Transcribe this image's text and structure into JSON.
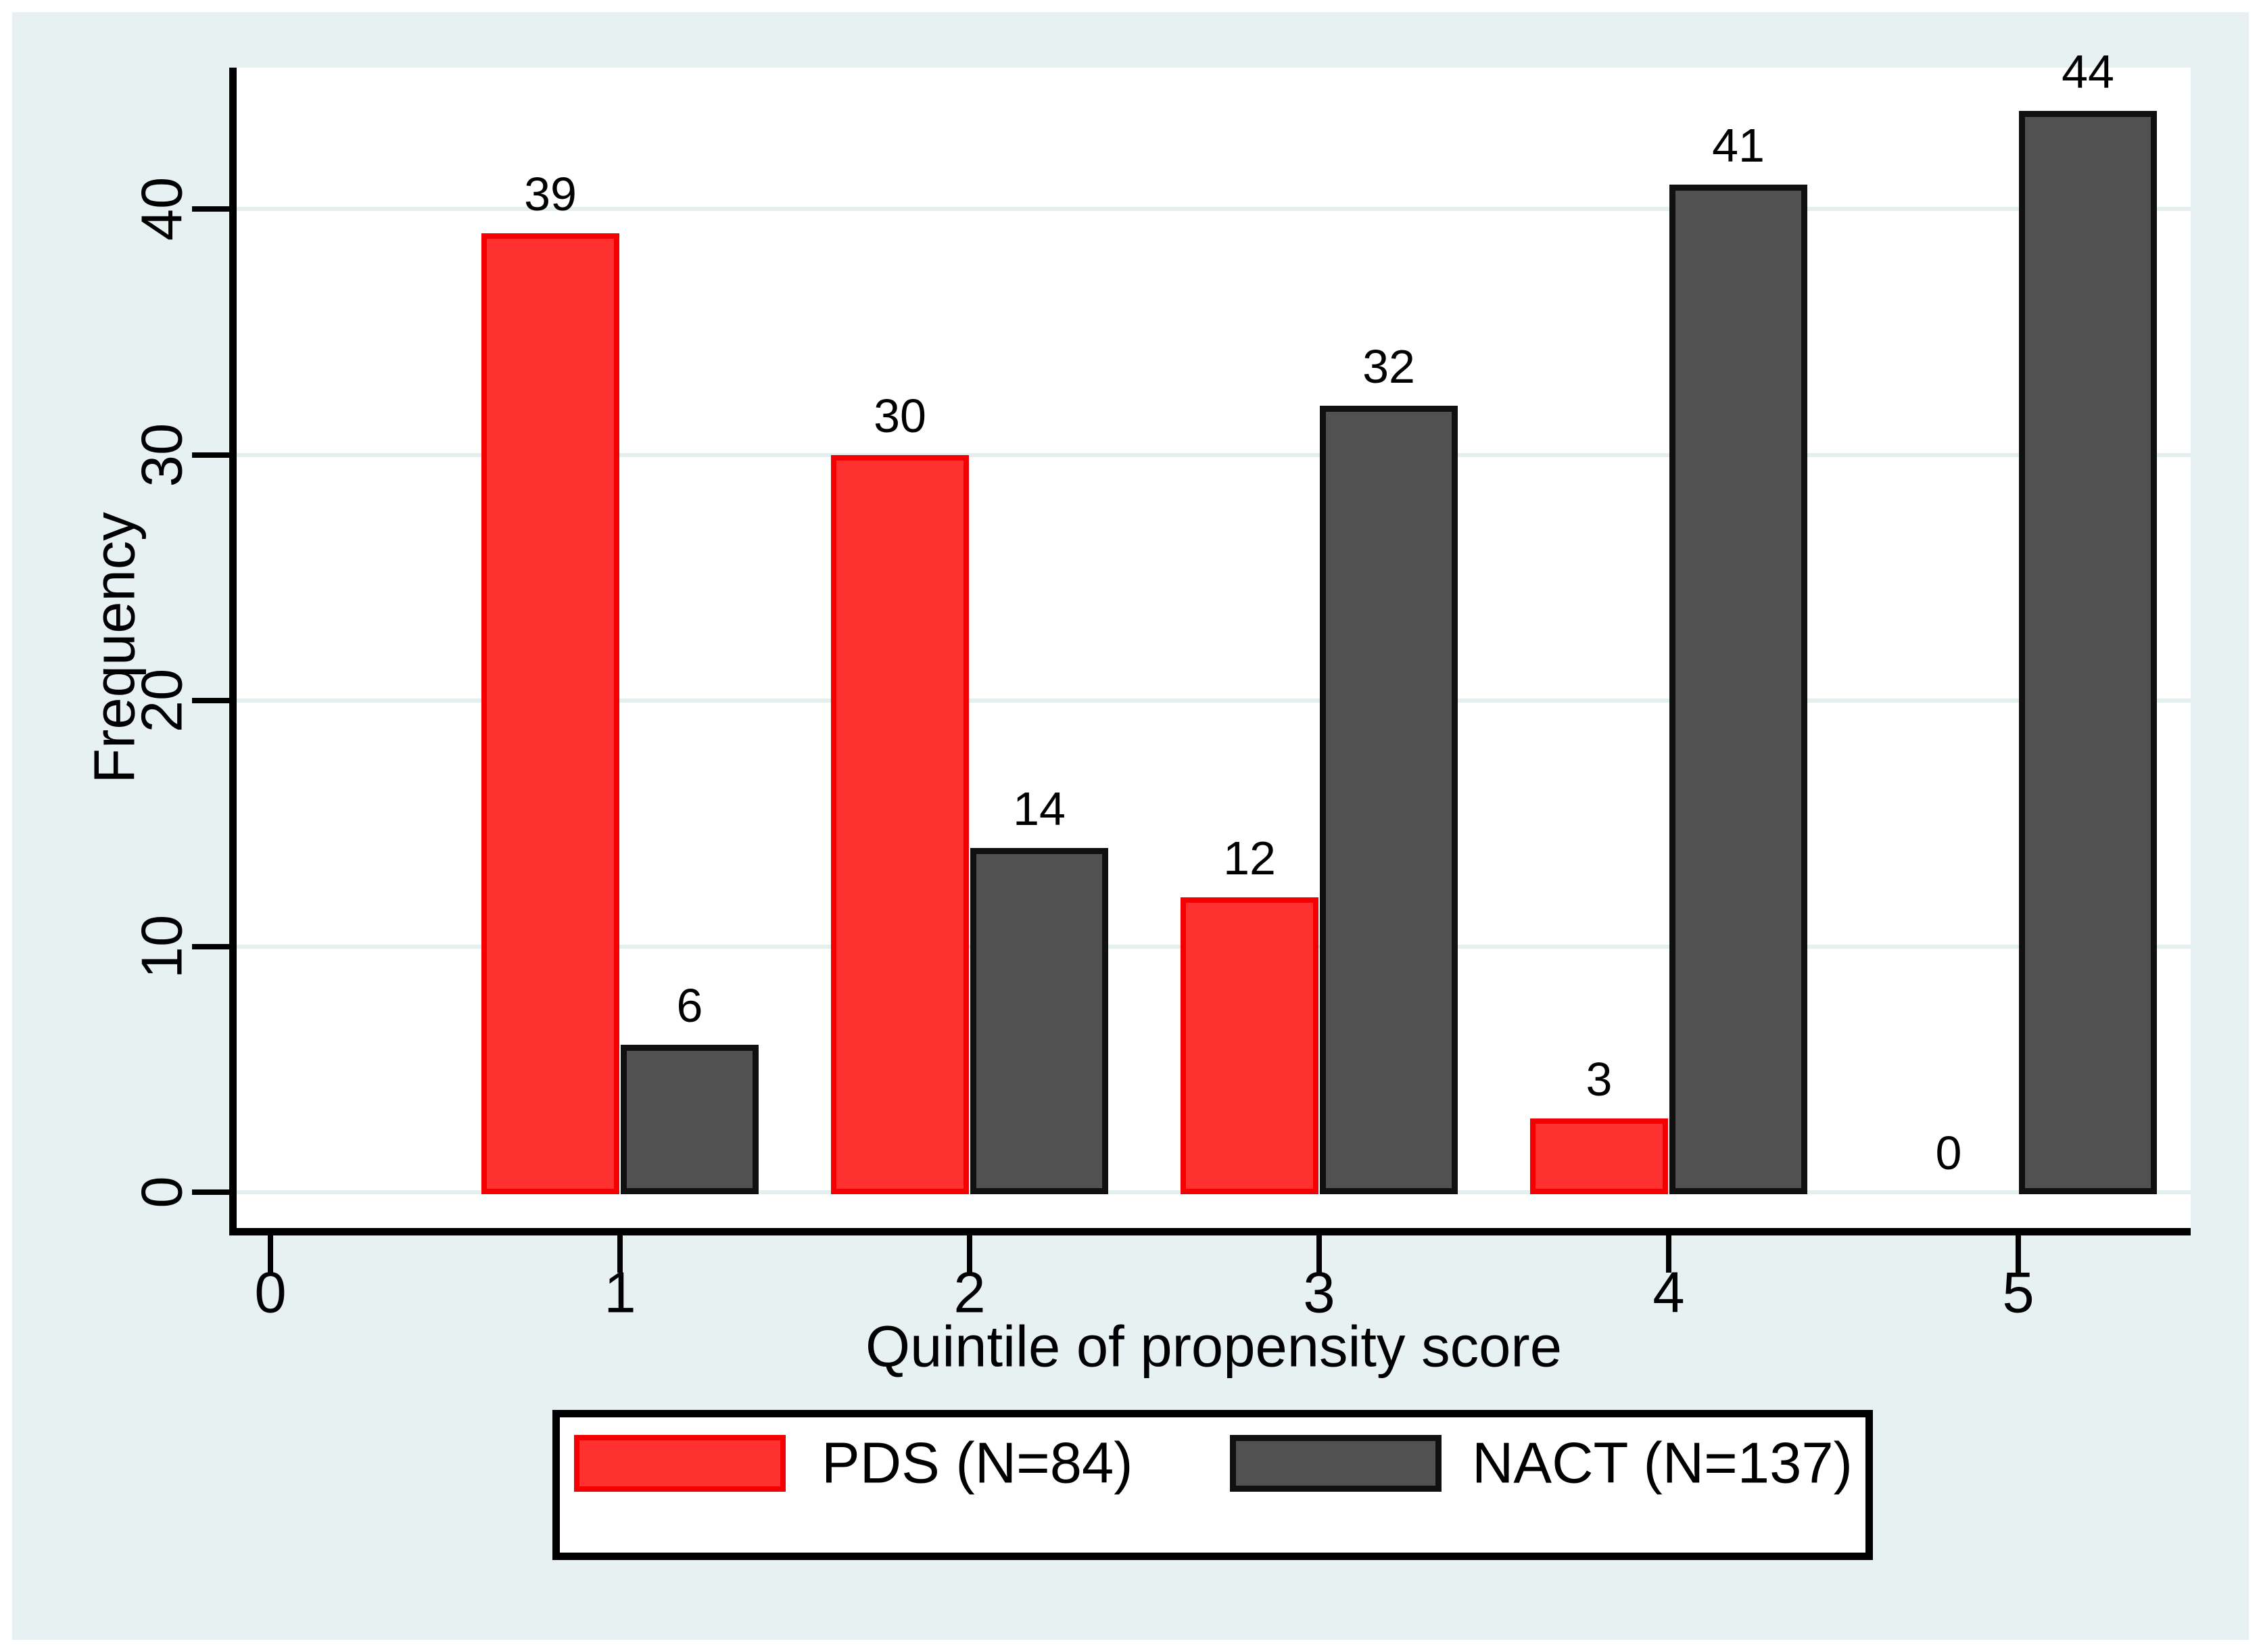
{
  "chart_data": {
    "type": "bar",
    "xlabel": "Quintile of propensity score",
    "ylabel": "Frequency",
    "categories": [
      1,
      2,
      3,
      4,
      5
    ],
    "series": [
      {
        "name": "PDS (N=84)",
        "color": "#ff3030",
        "border_color": "#f40000",
        "values": [
          39,
          30,
          12,
          3,
          0
        ]
      },
      {
        "name": "NACT (N=137)",
        "color": "#515151",
        "border_color": "#101010",
        "values": [
          6,
          14,
          32,
          41,
          44
        ]
      }
    ],
    "x_axis_ticks": [
      "0",
      "1",
      "2",
      "3",
      "4",
      "5"
    ],
    "y_axis_ticks": [
      "0",
      "10",
      "20",
      "30",
      "40"
    ],
    "ylim": [
      0,
      45.8
    ],
    "grid": true,
    "value_labels_shown": true,
    "legend_position": "bottom-center"
  },
  "colors": {
    "background": "#e8f1f2",
    "plot_background": "#ffffff",
    "gridline": "#e4eff0",
    "axis": "#000000",
    "text": "#000000",
    "outer_frame": "#ffffff"
  }
}
